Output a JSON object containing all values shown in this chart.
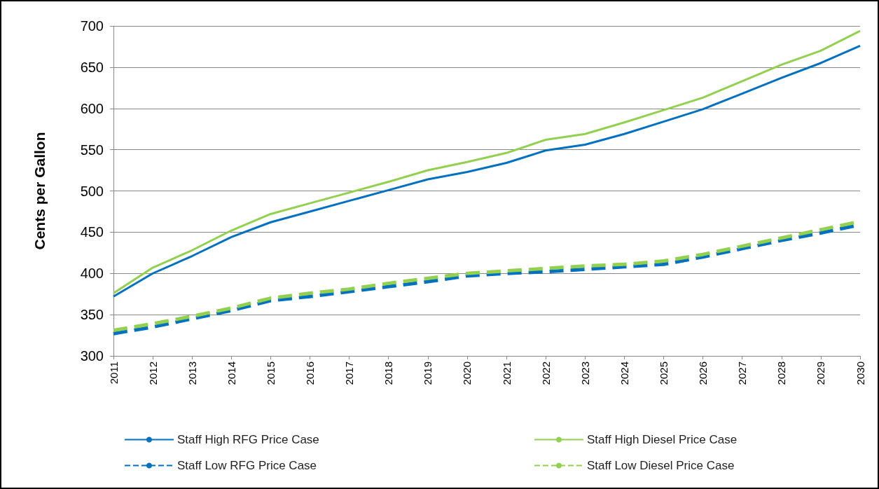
{
  "chart_data": {
    "type": "line",
    "ylabel": "Cents per Gallon",
    "categories": [
      "2011",
      "2012",
      "2013",
      "2014",
      "2015",
      "2016",
      "2017",
      "2018",
      "2019",
      "2020",
      "2021",
      "2022",
      "2023",
      "2024",
      "2025",
      "2026",
      "2027",
      "2028",
      "2029",
      "2030"
    ],
    "series": [
      {
        "name": "Staff High RFG Price Case",
        "color": "#0070c0",
        "line_style": "solid",
        "values": [
          372,
          400,
          421,
          444,
          462,
          475,
          488,
          501,
          514,
          523,
          534,
          549,
          556,
          569,
          584,
          599,
          618,
          637,
          655,
          676
        ]
      },
      {
        "name": "Staff Low RFG Price Case",
        "color": "#0070c0",
        "line_style": "dashed",
        "values": [
          327,
          335,
          345,
          355,
          367,
          372,
          378,
          384,
          390,
          397,
          400,
          402,
          405,
          408,
          411,
          420,
          430,
          440,
          449,
          459
        ]
      },
      {
        "name": "Staff High Diesel Price Case",
        "color": "#92d050",
        "line_style": "solid",
        "values": [
          376,
          407,
          428,
          452,
          472,
          485,
          498,
          511,
          525,
          535,
          546,
          562,
          569,
          583,
          598,
          613,
          633,
          653,
          670,
          694
        ]
      },
      {
        "name": "Staff Low Diesel Price Case",
        "color": "#92d050",
        "line_style": "dashed",
        "values": [
          331,
          339,
          348,
          358,
          370,
          376,
          381,
          388,
          394,
          400,
          403,
          406,
          409,
          411,
          415,
          423,
          433,
          443,
          453,
          463
        ]
      }
    ],
    "ylim": [
      300,
      700
    ],
    "yticks": [
      300,
      350,
      400,
      450,
      500,
      550,
      600,
      650,
      700
    ],
    "grid": "y",
    "legend": "bottom",
    "marker": "none"
  }
}
